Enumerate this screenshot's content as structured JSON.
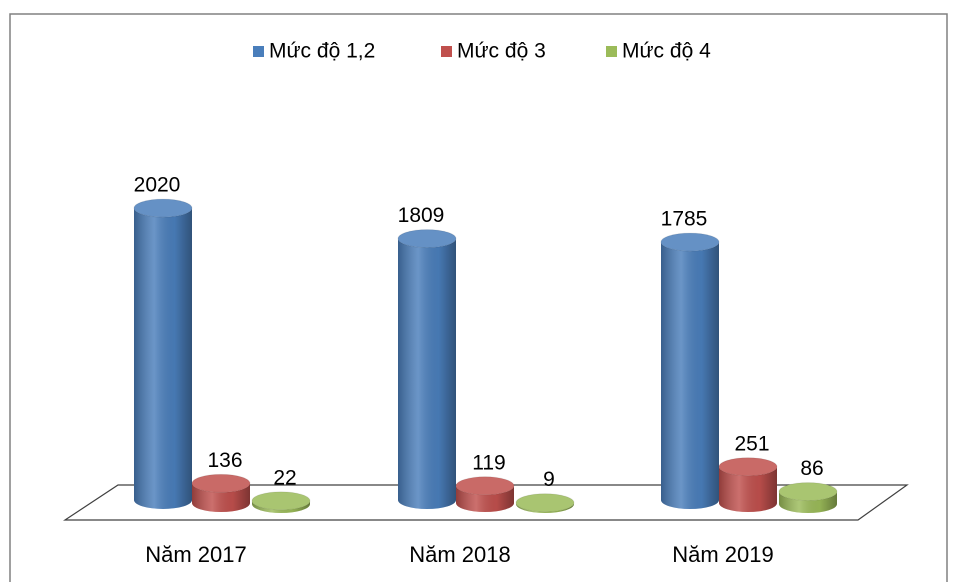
{
  "chart_data": {
    "type": "bar",
    "categories": [
      "Năm 2017",
      "Năm 2018",
      "Năm 2019"
    ],
    "series": [
      {
        "name": "Mức độ 1,2",
        "color": "#4a7ebb",
        "values": [
          2020,
          1809,
          1785
        ]
      },
      {
        "name": "Mức độ 3",
        "color": "#c0504d",
        "values": [
          136,
          119,
          251
        ]
      },
      {
        "name": "Mức độ 4",
        "color": "#9bbb59",
        "values": [
          22,
          9,
          86
        ]
      }
    ],
    "legend": "top"
  }
}
